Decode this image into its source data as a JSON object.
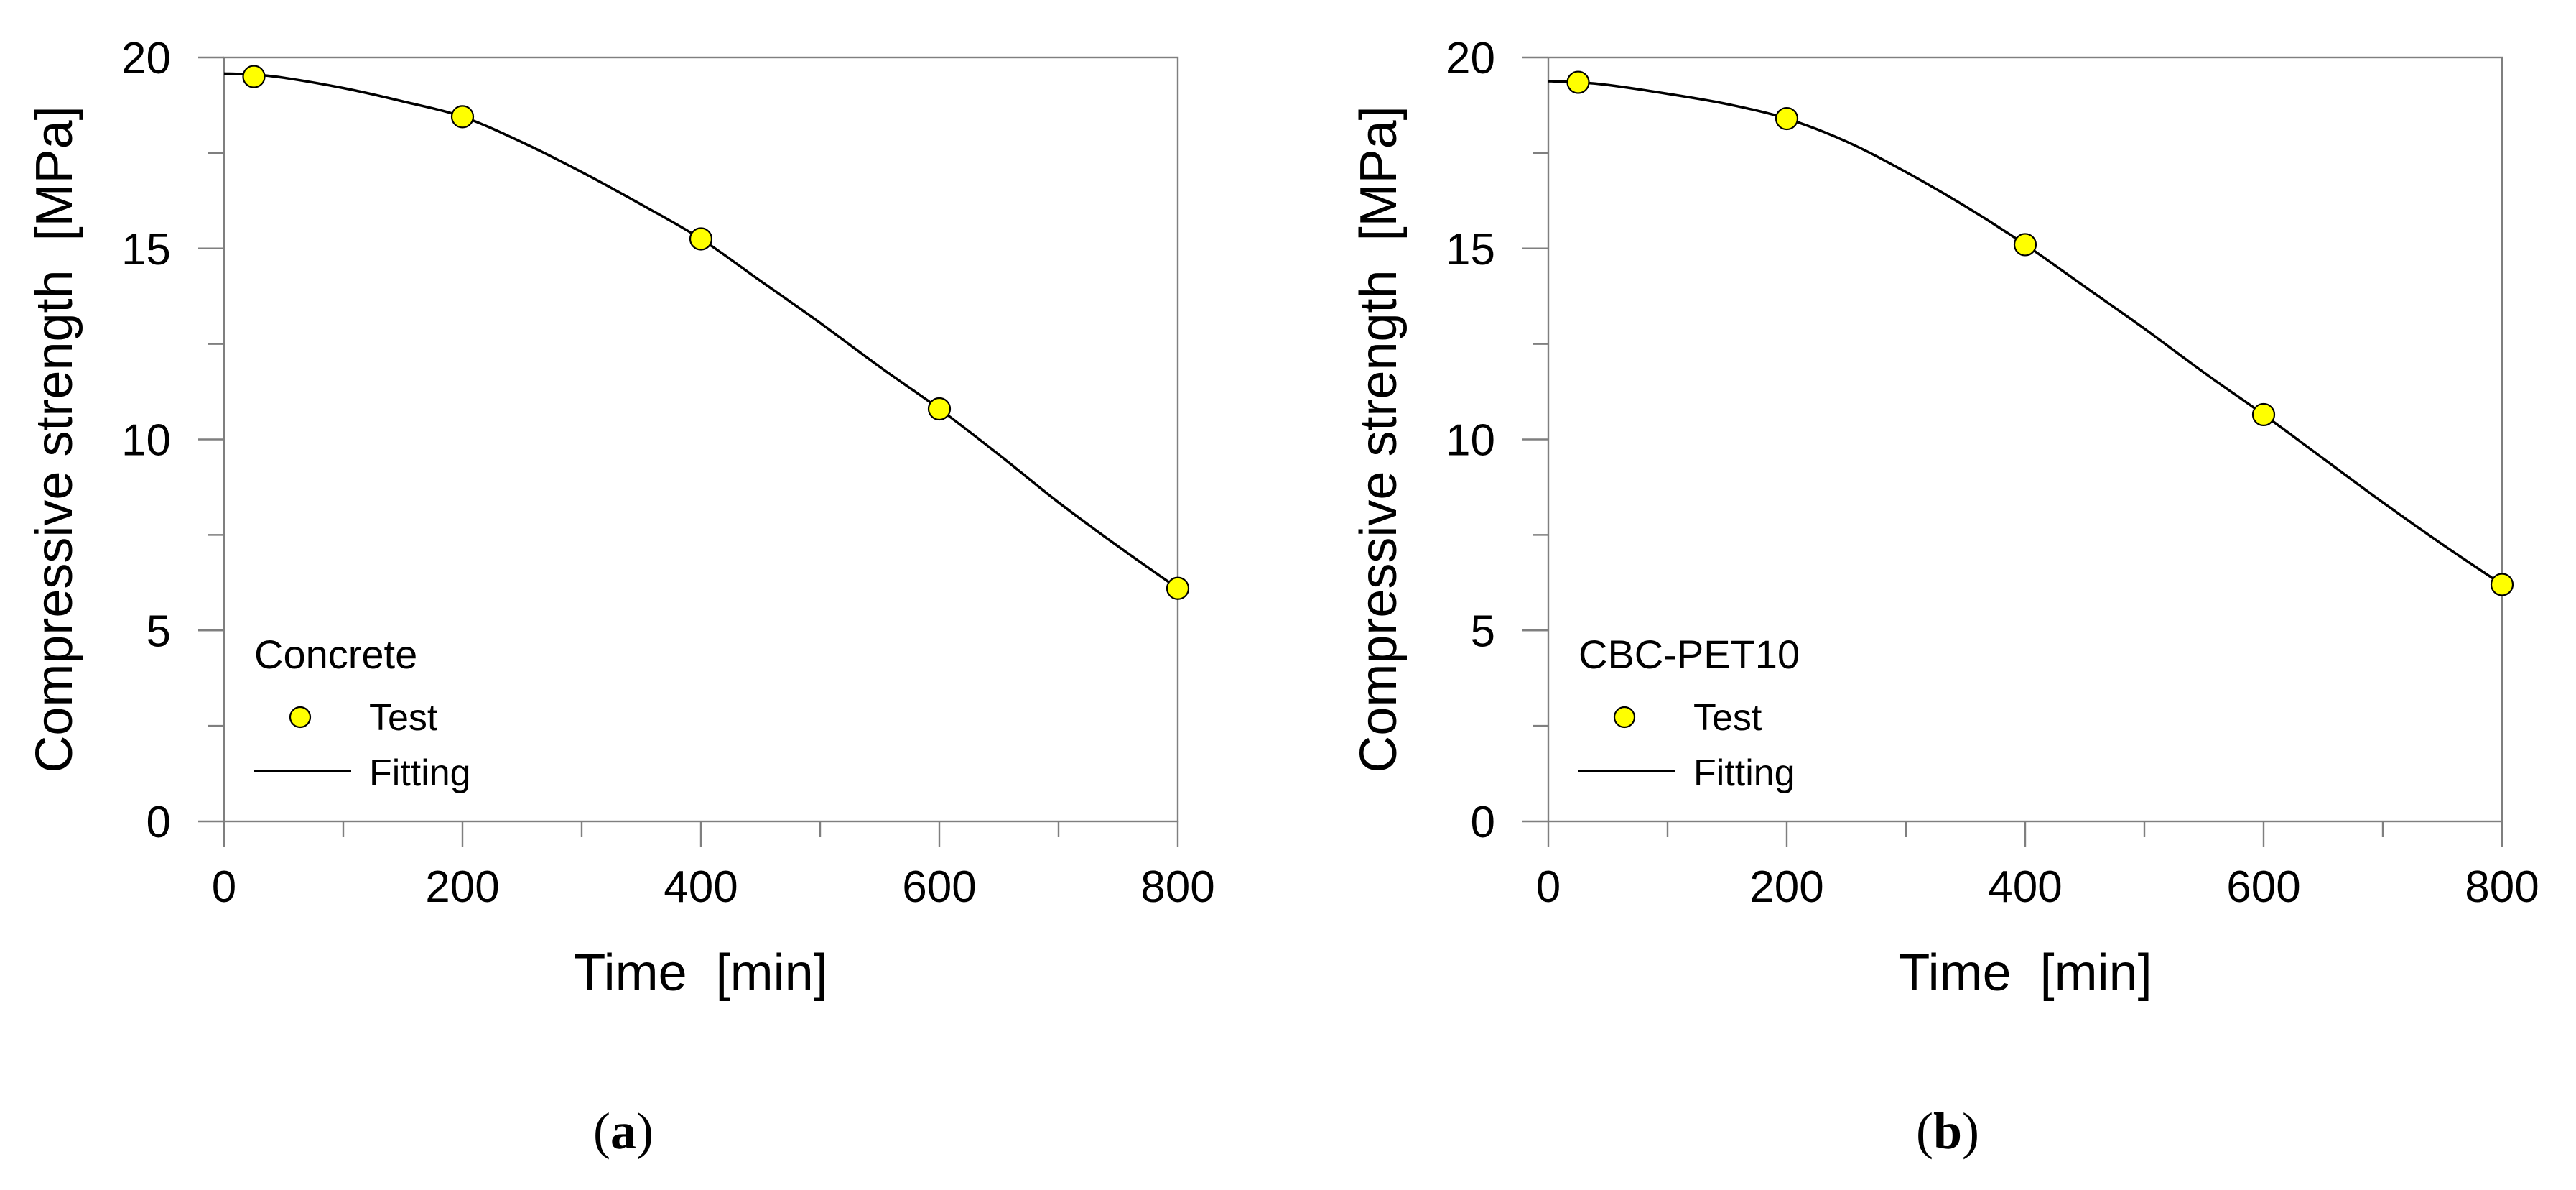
{
  "chart_data": [
    {
      "type": "scatter",
      "panel_label": "a",
      "legend_title": "Concrete",
      "xlabel": "Time  [min]",
      "ylabel": "Compressive strength  [MPa]",
      "xlim": [
        0,
        800
      ],
      "ylim": [
        0,
        20
      ],
      "xticks": [
        0,
        200,
        400,
        600,
        800
      ],
      "yticks": [
        0,
        5,
        10,
        15,
        20
      ],
      "grid": false,
      "legend_position": "bottom-left",
      "series": [
        {
          "name": "Test",
          "kind": "marker",
          "x": [
            25,
            200,
            400,
            600,
            800
          ],
          "y": [
            19.5,
            18.45,
            15.25,
            10.8,
            6.1
          ]
        },
        {
          "name": "Fitting",
          "kind": "line",
          "x": [
            0,
            25,
            50,
            100,
            150,
            200,
            250,
            300,
            350,
            400,
            450,
            500,
            550,
            600,
            650,
            700,
            750,
            800
          ],
          "y": [
            19.58,
            19.55,
            19.47,
            19.2,
            18.85,
            18.45,
            17.78,
            17.0,
            16.15,
            15.25,
            14.15,
            13.05,
            11.9,
            10.8,
            9.6,
            8.35,
            7.2,
            6.1
          ]
        }
      ]
    },
    {
      "type": "scatter",
      "panel_label": "b",
      "legend_title": "CBC-PET10",
      "xlabel": "Time  [min]",
      "ylabel": "Compressive strength  [MPa]",
      "xlim": [
        0,
        800
      ],
      "ylim": [
        0,
        20
      ],
      "xticks": [
        0,
        200,
        400,
        600,
        800
      ],
      "yticks": [
        0,
        5,
        10,
        15,
        20
      ],
      "grid": false,
      "legend_position": "bottom-left",
      "series": [
        {
          "name": "Test",
          "kind": "marker",
          "x": [
            25,
            200,
            400,
            600,
            800
          ],
          "y": [
            19.35,
            18.4,
            15.1,
            10.65,
            6.2
          ]
        },
        {
          "name": "Fitting",
          "kind": "line",
          "x": [
            0,
            25,
            50,
            100,
            150,
            200,
            250,
            300,
            350,
            400,
            450,
            500,
            550,
            600,
            650,
            700,
            750,
            800
          ],
          "y": [
            19.38,
            19.35,
            19.28,
            19.05,
            18.78,
            18.4,
            17.8,
            17.0,
            16.1,
            15.1,
            14.0,
            12.9,
            11.75,
            10.65,
            9.5,
            8.35,
            7.25,
            6.2
          ]
        }
      ]
    }
  ]
}
